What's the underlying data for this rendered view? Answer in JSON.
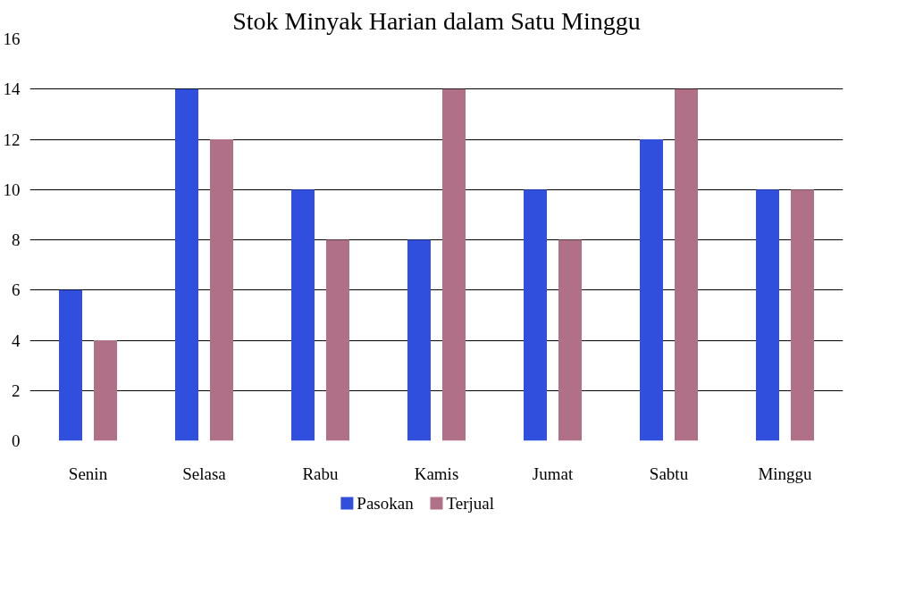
{
  "chart_data": {
    "type": "bar",
    "title": "Stok Minyak Harian dalam Satu Minggu",
    "categories": [
      "Senin",
      "Selasa",
      "Rabu",
      "Kamis",
      "Jumat",
      "Sabtu",
      "Minggu"
    ],
    "series": [
      {
        "name": "Pasokan",
        "color": "#2f4fdc",
        "values": [
          6,
          14,
          10,
          8,
          10,
          12,
          10
        ]
      },
      {
        "name": "Terjual",
        "color": "#b07088",
        "values": [
          4,
          12,
          8,
          14,
          8,
          14,
          10
        ]
      }
    ],
    "ylim": [
      0,
      16
    ],
    "yticks": [
      0,
      2,
      4,
      6,
      8,
      10,
      12,
      14,
      16
    ],
    "grid": "y",
    "legend": "bottom"
  }
}
